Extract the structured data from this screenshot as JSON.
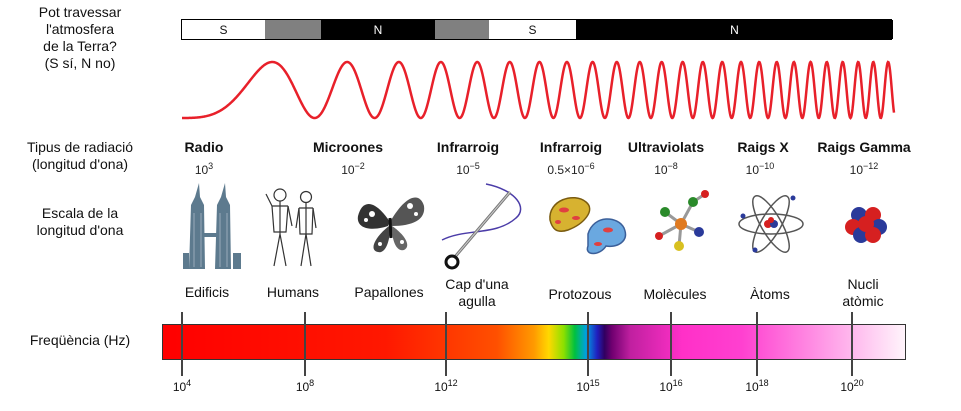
{
  "left_labels": {
    "atmosphere": "Pot travessar\nl'atmosfera\nde la Terra?\n(S sí, N no)",
    "radiation_type": "Tipus de radiació\n(longitud d'ona)",
    "wavelength_scale": "Escala de la\nlongitud d'ona",
    "frequency": "Freqüència (Hz)"
  },
  "atmosphere_bar": {
    "segments": [
      {
        "label": "S",
        "color": "#ffffff",
        "text_color": "#000000"
      },
      {
        "label": "",
        "color": "#808080",
        "text_color": "#ffffff"
      },
      {
        "label": "N",
        "color": "#000000",
        "text_color": "#ffffff"
      },
      {
        "label": "",
        "color": "#808080",
        "text_color": "#ffffff"
      },
      {
        "label": "S",
        "color": "#ffffff",
        "text_color": "#000000"
      },
      {
        "label": "N",
        "color": "#000000",
        "text_color": "#ffffff"
      }
    ]
  },
  "bands": [
    {
      "name": "Radio",
      "wl_base": "10",
      "wl_exp": "3",
      "object": "Edificis",
      "icon": "buildings-icon"
    },
    {
      "name": "Microones",
      "wl_base": "10",
      "wl_exp": "−2",
      "object": "Humans",
      "icon": "humans-icon"
    },
    {
      "name": "Infrarroig",
      "wl_base": "10",
      "wl_exp": "−5",
      "object": "Cap d'una\nagulla",
      "icon": "needle-icon"
    },
    {
      "name": "Infrarroig",
      "wl_base": "0.5×10",
      "wl_exp": "−6",
      "object": "Protozous",
      "icon": "protozoa-icon"
    },
    {
      "name": "Ultraviolats",
      "wl_base": "10",
      "wl_exp": "−8",
      "object": "Molècules",
      "icon": "molecule-icon"
    },
    {
      "name": "Raigs X",
      "wl_base": "10",
      "wl_exp": "−10",
      "object": "Àtoms",
      "icon": "atom-icon"
    },
    {
      "name": "Raigs Gamma",
      "wl_base": "10",
      "wl_exp": "−12",
      "object": "Nucli\natòmic",
      "icon": "nucleus-icon"
    }
  ],
  "frequency_ticks": [
    {
      "base": "10",
      "exp": "4"
    },
    {
      "base": "10",
      "exp": "8"
    },
    {
      "base": "10",
      "exp": "12"
    },
    {
      "base": "10",
      "exp": "15"
    },
    {
      "base": "10",
      "exp": "16"
    },
    {
      "base": "10",
      "exp": "18"
    },
    {
      "base": "10",
      "exp": "20"
    }
  ],
  "colors": {
    "wave": "#e8202a",
    "spectrum_red": "#ff0000",
    "spectrum_magenta": "#ff33cc"
  }
}
